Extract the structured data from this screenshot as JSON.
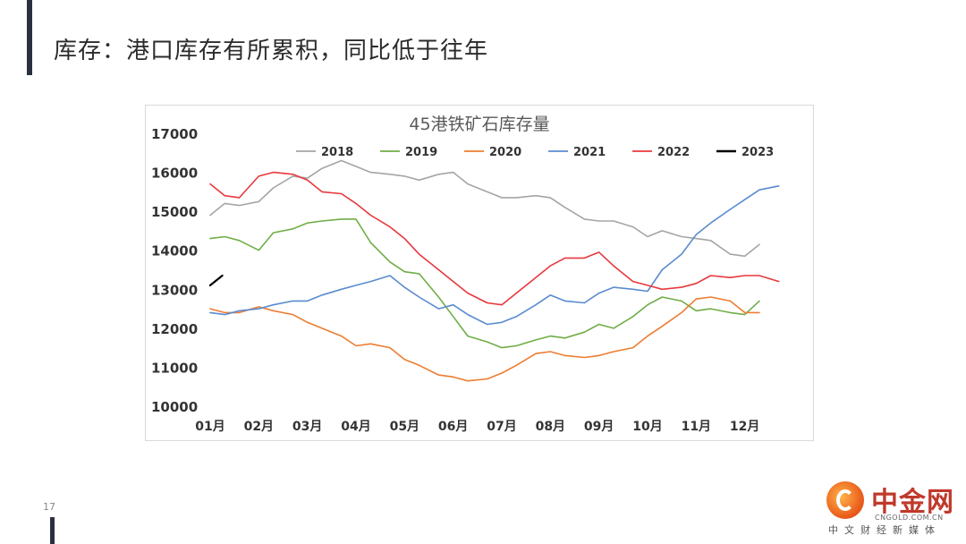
{
  "slide": {
    "title": "库存：港口库存有所累积，同比低于往年",
    "page_number": "17"
  },
  "logo": {
    "name": "中金网",
    "url": "CNGOLD.COM.CN",
    "slogan": "中文财经新媒体"
  },
  "colors": {
    "2018": "#a5a5a5",
    "2019": "#70ad47",
    "2020": "#ed7d31",
    "2021": "#5b8bd0",
    "2022": "#e8383d",
    "2023": "#000000"
  },
  "chart_data": {
    "type": "line",
    "title": "45港铁矿石库存量",
    "xlabel": "",
    "ylabel": "",
    "ylim": [
      10000,
      17000
    ],
    "yticks": [
      10000,
      11000,
      12000,
      13000,
      14000,
      15000,
      16000,
      17000
    ],
    "categories": [
      "01月",
      "02月",
      "03月",
      "04月",
      "05月",
      "06月",
      "07月",
      "08月",
      "09月",
      "10月",
      "11月",
      "12月"
    ],
    "legend_position": "top",
    "grid": false,
    "series": [
      {
        "name": "2018",
        "x": [
          1,
          1.3,
          1.6,
          2,
          2.3,
          2.7,
          3,
          3.3,
          3.7,
          4,
          4.3,
          4.7,
          5,
          5.3,
          5.7,
          6,
          6.3,
          6.7,
          7,
          7.3,
          7.7,
          8,
          8.3,
          8.7,
          9,
          9.3,
          9.7,
          10,
          10.3,
          10.7,
          11,
          11.3,
          11.7,
          12,
          12.3
        ],
        "values": [
          14900,
          15200,
          15150,
          15250,
          15600,
          15900,
          15850,
          16100,
          16300,
          16150,
          16000,
          15950,
          15900,
          15800,
          15950,
          16000,
          15700,
          15500,
          15350,
          15350,
          15400,
          15350,
          15100,
          14800,
          14750,
          14750,
          14600,
          14350,
          14500,
          14350,
          14300,
          14250,
          13900,
          13850,
          14150
        ]
      },
      {
        "name": "2019",
        "x": [
          1,
          1.3,
          1.6,
          2,
          2.3,
          2.7,
          3,
          3.3,
          3.7,
          4,
          4.3,
          4.7,
          5,
          5.3,
          5.7,
          6,
          6.3,
          6.7,
          7,
          7.3,
          7.7,
          8,
          8.3,
          8.7,
          9,
          9.3,
          9.7,
          10,
          10.3,
          10.7,
          11,
          11.3,
          11.7,
          12,
          12.3
        ],
        "values": [
          14300,
          14350,
          14250,
          14000,
          14450,
          14550,
          14700,
          14750,
          14800,
          14800,
          14200,
          13700,
          13450,
          13400,
          12800,
          12300,
          11800,
          11650,
          11500,
          11550,
          11700,
          11800,
          11750,
          11900,
          12100,
          12000,
          12300,
          12600,
          12800,
          12700,
          12450,
          12500,
          12400,
          12350,
          12700
        ]
      },
      {
        "name": "2020",
        "x": [
          1,
          1.3,
          1.6,
          2,
          2.3,
          2.7,
          3,
          3.3,
          3.7,
          4,
          4.3,
          4.7,
          5,
          5.3,
          5.7,
          6,
          6.3,
          6.7,
          7,
          7.3,
          7.7,
          8,
          8.3,
          8.7,
          9,
          9.3,
          9.7,
          10,
          10.3,
          10.7,
          11,
          11.3,
          11.7,
          12,
          12.3
        ],
        "values": [
          12500,
          12400,
          12400,
          12550,
          12450,
          12350,
          12150,
          12000,
          11800,
          11550,
          11600,
          11500,
          11200,
          11050,
          10800,
          10750,
          10650,
          10700,
          10850,
          11050,
          11350,
          11400,
          11300,
          11250,
          11300,
          11400,
          11500,
          11800,
          12050,
          12400,
          12750,
          12800,
          12700,
          12400,
          12400
        ]
      },
      {
        "name": "2021",
        "x": [
          1,
          1.3,
          1.6,
          2,
          2.3,
          2.7,
          3,
          3.3,
          3.7,
          4,
          4.3,
          4.7,
          5,
          5.3,
          5.7,
          6,
          6.3,
          6.7,
          7,
          7.3,
          7.7,
          8,
          8.3,
          8.7,
          9,
          9.3,
          9.7,
          10,
          10.3,
          10.7,
          11,
          11.3,
          11.7,
          12,
          12.3,
          12.7
        ],
        "values": [
          12400,
          12350,
          12450,
          12500,
          12600,
          12700,
          12700,
          12850,
          13000,
          13100,
          13200,
          13350,
          13050,
          12800,
          12500,
          12600,
          12350,
          12100,
          12150,
          12300,
          12600,
          12850,
          12700,
          12650,
          12900,
          13050,
          13000,
          12950,
          13500,
          13900,
          14400,
          14700,
          15050,
          15300,
          15550,
          15650
        ]
      },
      {
        "name": "2022",
        "x": [
          1,
          1.3,
          1.6,
          2,
          2.3,
          2.7,
          3,
          3.3,
          3.7,
          4,
          4.3,
          4.7,
          5,
          5.3,
          5.7,
          6,
          6.3,
          6.7,
          7,
          7.3,
          7.7,
          8,
          8.3,
          8.7,
          9,
          9.3,
          9.7,
          10,
          10.3,
          10.7,
          11,
          11.3,
          11.7,
          12,
          12.3,
          12.7
        ],
        "values": [
          15700,
          15400,
          15350,
          15900,
          16000,
          15950,
          15800,
          15500,
          15450,
          15200,
          14900,
          14600,
          14300,
          13900,
          13500,
          13200,
          12900,
          12650,
          12600,
          12900,
          13300,
          13600,
          13800,
          13800,
          13950,
          13600,
          13200,
          13100,
          13000,
          13050,
          13150,
          13350,
          13300,
          13350,
          13350,
          13200
        ]
      },
      {
        "name": "2023",
        "x": [
          1,
          1.25
        ],
        "values": [
          13100,
          13350
        ]
      }
    ]
  }
}
